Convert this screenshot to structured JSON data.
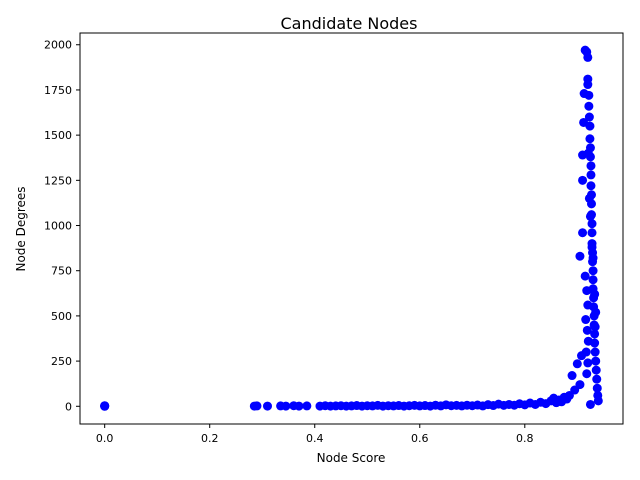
{
  "chart_data": {
    "type": "scatter",
    "title": "Candidate Nodes",
    "xlabel": "Node Score",
    "ylabel": "Node Degrees",
    "xlim": [
      -0.047,
      0.987
    ],
    "ylim": [
      -98,
      2065
    ],
    "xticks": [
      0.0,
      0.2,
      0.4,
      0.6,
      0.8
    ],
    "xtick_labels": [
      "0.0",
      "0.2",
      "0.4",
      "0.6",
      "0.8"
    ],
    "yticks": [
      0,
      250,
      500,
      750,
      1000,
      1250,
      1500,
      1750,
      2000
    ],
    "ytick_labels": [
      "0",
      "250",
      "500",
      "750",
      "1000",
      "1250",
      "1500",
      "1750",
      "2000"
    ],
    "grid": false,
    "marker_color": "#0000ff",
    "series": [
      {
        "points": [
          [
            0.0,
            0
          ],
          [
            0.0,
            1
          ],
          [
            0.0,
            2
          ],
          [
            0.0,
            3
          ],
          [
            0.285,
            1
          ],
          [
            0.29,
            2
          ],
          [
            0.31,
            1
          ],
          [
            0.335,
            2
          ],
          [
            0.345,
            1
          ],
          [
            0.36,
            3
          ],
          [
            0.37,
            1
          ],
          [
            0.385,
            2
          ],
          [
            0.41,
            1
          ],
          [
            0.42,
            3
          ],
          [
            0.43,
            1
          ],
          [
            0.44,
            2
          ],
          [
            0.45,
            3
          ],
          [
            0.46,
            1
          ],
          [
            0.47,
            2
          ],
          [
            0.48,
            4
          ],
          [
            0.49,
            1
          ],
          [
            0.5,
            3
          ],
          [
            0.51,
            2
          ],
          [
            0.52,
            5
          ],
          [
            0.53,
            1
          ],
          [
            0.54,
            3
          ],
          [
            0.55,
            2
          ],
          [
            0.56,
            4
          ],
          [
            0.57,
            1
          ],
          [
            0.58,
            3
          ],
          [
            0.59,
            5
          ],
          [
            0.6,
            2
          ],
          [
            0.61,
            4
          ],
          [
            0.62,
            1
          ],
          [
            0.63,
            6
          ],
          [
            0.64,
            2
          ],
          [
            0.65,
            8
          ],
          [
            0.66,
            3
          ],
          [
            0.67,
            5
          ],
          [
            0.68,
            2
          ],
          [
            0.69,
            6
          ],
          [
            0.7,
            3
          ],
          [
            0.71,
            7
          ],
          [
            0.72,
            2
          ],
          [
            0.73,
            9
          ],
          [
            0.74,
            4
          ],
          [
            0.75,
            12
          ],
          [
            0.76,
            5
          ],
          [
            0.77,
            10
          ],
          [
            0.78,
            6
          ],
          [
            0.79,
            14
          ],
          [
            0.8,
            8
          ],
          [
            0.81,
            18
          ],
          [
            0.82,
            10
          ],
          [
            0.83,
            22
          ],
          [
            0.84,
            15
          ],
          [
            0.85,
            30
          ],
          [
            0.855,
            45
          ],
          [
            0.86,
            20
          ],
          [
            0.865,
            35
          ],
          [
            0.87,
            25
          ],
          [
            0.875,
            50
          ],
          [
            0.88,
            40
          ],
          [
            0.885,
            60
          ],
          [
            0.89,
            170
          ],
          [
            0.895,
            90
          ],
          [
            0.9,
            235
          ],
          [
            0.905,
            120
          ],
          [
            0.905,
            830
          ],
          [
            0.908,
            280
          ],
          [
            0.91,
            960
          ],
          [
            0.91,
            1390
          ],
          [
            0.91,
            1250
          ],
          [
            0.912,
            1570
          ],
          [
            0.913,
            1730
          ],
          [
            0.915,
            1970
          ],
          [
            0.918,
            1960
          ],
          [
            0.92,
            1930
          ],
          [
            0.92,
            1810
          ],
          [
            0.92,
            1780
          ],
          [
            0.922,
            1720
          ],
          [
            0.922,
            1660
          ],
          [
            0.923,
            1600
          ],
          [
            0.924,
            1550
          ],
          [
            0.924,
            1480
          ],
          [
            0.925,
            1430
          ],
          [
            0.925,
            1380
          ],
          [
            0.926,
            1330
          ],
          [
            0.926,
            1280
          ],
          [
            0.926,
            1220
          ],
          [
            0.927,
            1170
          ],
          [
            0.927,
            1120
          ],
          [
            0.927,
            1060
          ],
          [
            0.928,
            1010
          ],
          [
            0.928,
            960
          ],
          [
            0.928,
            900
          ],
          [
            0.929,
            850
          ],
          [
            0.929,
            800
          ],
          [
            0.93,
            750
          ],
          [
            0.93,
            700
          ],
          [
            0.93,
            650
          ],
          [
            0.931,
            600
          ],
          [
            0.931,
            550
          ],
          [
            0.932,
            500
          ],
          [
            0.932,
            450
          ],
          [
            0.933,
            400
          ],
          [
            0.933,
            350
          ],
          [
            0.934,
            300
          ],
          [
            0.935,
            250
          ],
          [
            0.936,
            200
          ],
          [
            0.937,
            150
          ],
          [
            0.938,
            100
          ],
          [
            0.939,
            60
          ],
          [
            0.94,
            30
          ],
          [
            0.925,
            10
          ],
          [
            0.915,
            720
          ],
          [
            0.918,
            640
          ],
          [
            0.92,
            560
          ],
          [
            0.916,
            480
          ],
          [
            0.919,
            420
          ],
          [
            0.921,
            360
          ],
          [
            0.917,
            300
          ],
          [
            0.92,
            240
          ],
          [
            0.918,
            180
          ],
          [
            0.935,
            520
          ],
          [
            0.934,
            440
          ],
          [
            0.933,
            620
          ],
          [
            0.93,
            820
          ],
          [
            0.928,
            880
          ],
          [
            0.925,
            1050
          ],
          [
            0.923,
            1150
          ],
          [
            0.921,
            1400
          ]
        ]
      }
    ]
  }
}
